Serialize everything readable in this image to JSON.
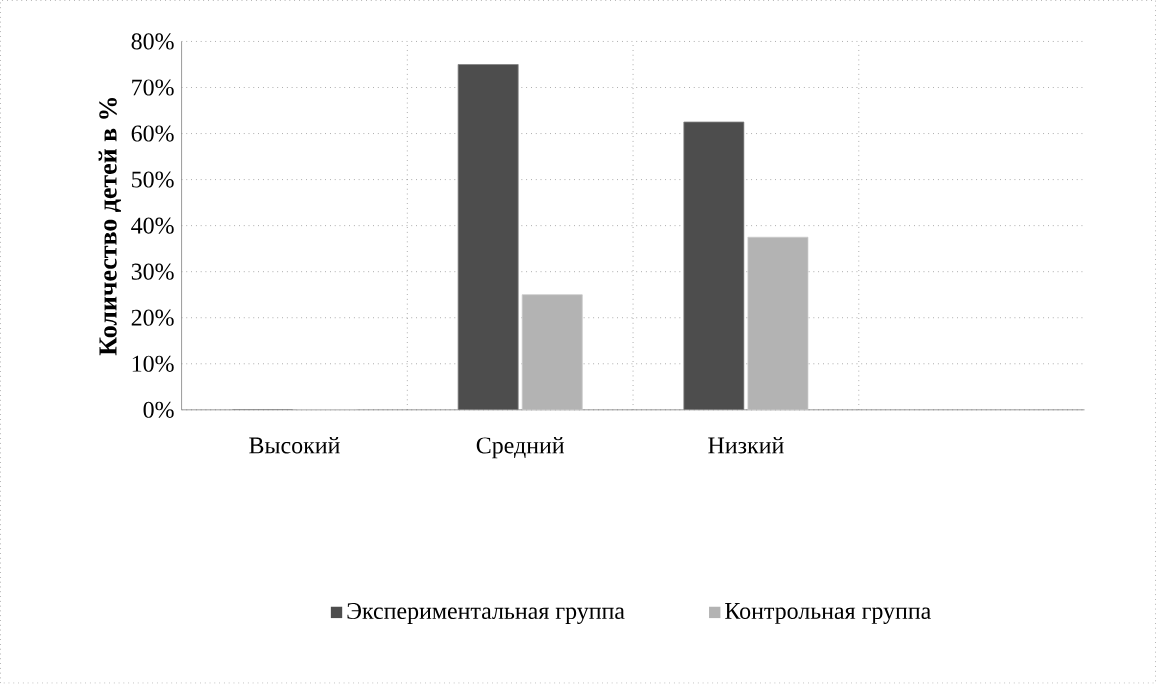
{
  "chart_data": {
    "type": "bar",
    "ylabel": "Количество детей в %",
    "categories": [
      "Высокий",
      "Средний",
      "Низкий",
      null
    ],
    "series": [
      {
        "name": "Экспериментальная группа",
        "color": "#4d4d4d",
        "values": [
          0,
          75,
          62.5,
          null
        ]
      },
      {
        "name": "Контрольная группа",
        "color": "#b3b3b3",
        "values": [
          0,
          25,
          37.5,
          null
        ]
      }
    ],
    "ylim": [
      0,
      80
    ],
    "yticks": [
      {
        "value": 0,
        "label": "0%"
      },
      {
        "value": 10,
        "label": "10%"
      },
      {
        "value": 20,
        "label": "20%"
      },
      {
        "value": 30,
        "label": "30%"
      },
      {
        "value": 40,
        "label": "40%"
      },
      {
        "value": 50,
        "label": "50%"
      },
      {
        "value": 60,
        "label": "60%"
      },
      {
        "value": 70,
        "label": "70%"
      },
      {
        "value": 80,
        "label": "80%"
      }
    ],
    "grid": true,
    "legend": "bottom"
  }
}
